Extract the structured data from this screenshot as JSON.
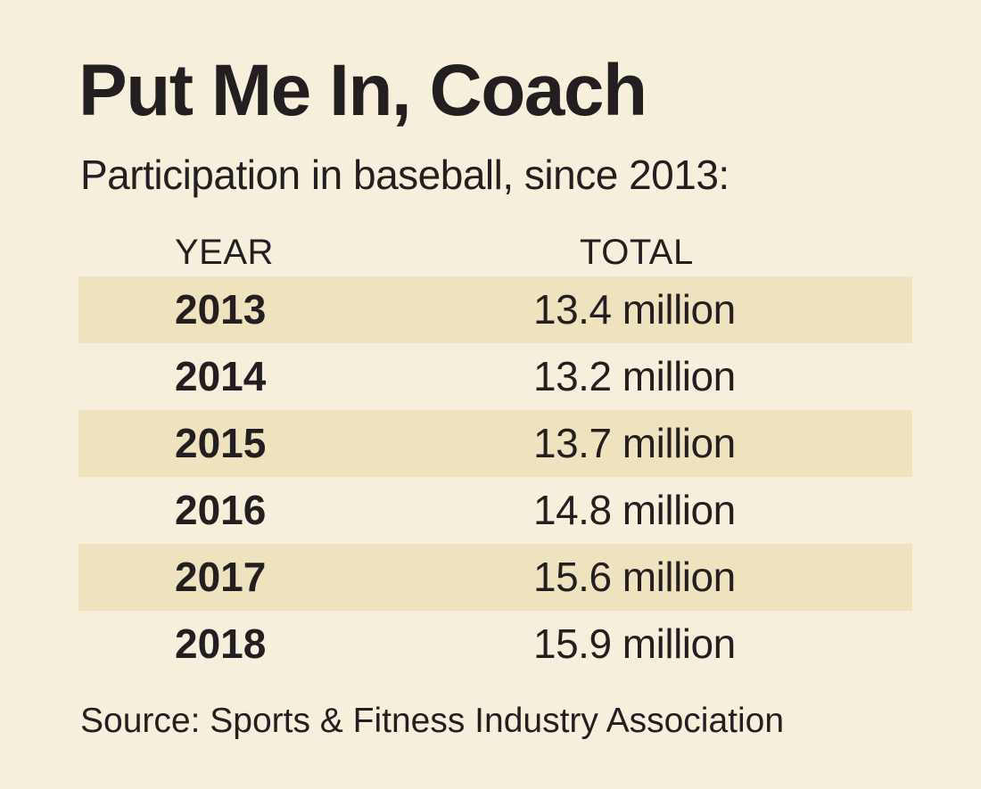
{
  "chart_data": {
    "type": "table",
    "title": "Put Me In, Coach",
    "subtitle": "Participation in baseball, since 2013:",
    "columns": [
      "YEAR",
      "TOTAL"
    ],
    "rows": [
      {
        "year": "2013",
        "total": "13.4 million"
      },
      {
        "year": "2014",
        "total": "13.2 million"
      },
      {
        "year": "2015",
        "total": "13.7 million"
      },
      {
        "year": "2016",
        "total": "14.8 million"
      },
      {
        "year": "2017",
        "total": "15.6 million"
      },
      {
        "year": "2018",
        "total": "15.9 million"
      }
    ],
    "values": [
      13.4,
      13.2,
      13.7,
      14.8,
      15.6,
      15.9
    ],
    "unit": "million",
    "source": "Source: Sports & Fitness Industry Association"
  },
  "colors": {
    "background": "#f5efdc",
    "row_shade": "#efe3bf",
    "text": "#231f20"
  }
}
